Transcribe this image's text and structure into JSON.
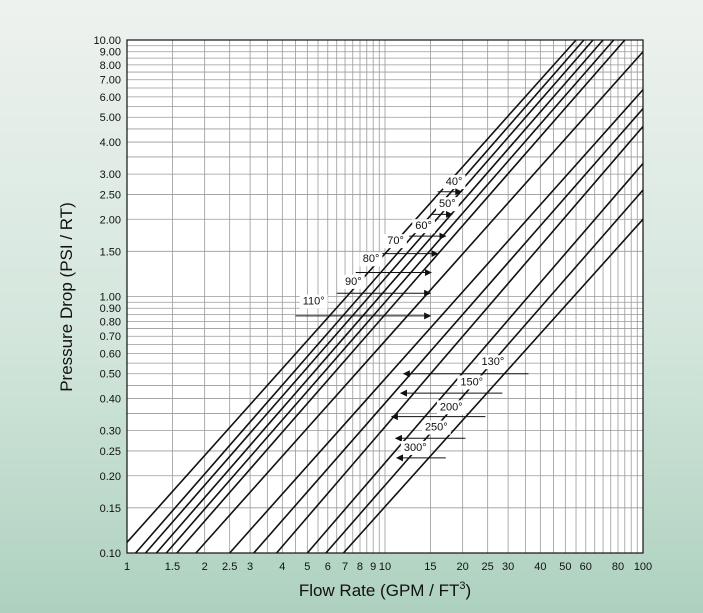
{
  "chart_data": {
    "type": "line",
    "title": "",
    "xlabel": "Flow Rate (GPM / FT",
    "xlabel_superscript": "3",
    "xlabel_suffix": ")",
    "ylabel": "Pressure Drop (PSI / RT)",
    "x_scale": "log",
    "y_scale": "log",
    "xlim": [
      1,
      100
    ],
    "ylim": [
      0.1,
      10
    ],
    "grid": true,
    "legend": "none",
    "line_color": "#111111",
    "x_ticks": [
      {
        "v": 1,
        "label": "1"
      },
      {
        "v": 1.5,
        "label": "1.5"
      },
      {
        "v": 2,
        "label": "2"
      },
      {
        "v": 2.5,
        "label": "2.5"
      },
      {
        "v": 3,
        "label": "3"
      },
      {
        "v": 4,
        "label": "4"
      },
      {
        "v": 5,
        "label": "5"
      },
      {
        "v": 6,
        "label": "6"
      },
      {
        "v": 7,
        "label": "7"
      },
      {
        "v": 8,
        "label": "8"
      },
      {
        "v": 9,
        "label": "9"
      },
      {
        "v": 10,
        "label": "10"
      },
      {
        "v": 15,
        "label": "15"
      },
      {
        "v": 20,
        "label": "20"
      },
      {
        "v": 25,
        "label": "25"
      },
      {
        "v": 30,
        "label": "30"
      },
      {
        "v": 40,
        "label": "40"
      },
      {
        "v": 50,
        "label": "50"
      },
      {
        "v": 60,
        "label": "60"
      },
      {
        "v": 80,
        "label": "80"
      },
      {
        "v": 100,
        "label": "100"
      }
    ],
    "y_ticks": [
      {
        "v": 0.1,
        "label": "0.10"
      },
      {
        "v": 0.15,
        "label": "0.15"
      },
      {
        "v": 0.2,
        "label": "0.20"
      },
      {
        "v": 0.25,
        "label": "0.25"
      },
      {
        "v": 0.3,
        "label": "0.30"
      },
      {
        "v": 0.4,
        "label": "0.40"
      },
      {
        "v": 0.5,
        "label": "0.50"
      },
      {
        "v": 0.6,
        "label": "0.60"
      },
      {
        "v": 0.7,
        "label": "0.70"
      },
      {
        "v": 0.8,
        "label": "0.80"
      },
      {
        "v": 0.9,
        "label": "0.90"
      },
      {
        "v": 1,
        "label": "1.00"
      },
      {
        "v": 1.5,
        "label": "1.50"
      },
      {
        "v": 2,
        "label": "2.00"
      },
      {
        "v": 2.5,
        "label": "2.50"
      },
      {
        "v": 3,
        "label": "3.00"
      },
      {
        "v": 4,
        "label": "4.00"
      },
      {
        "v": 5,
        "label": "5.00"
      },
      {
        "v": 6,
        "label": "6.00"
      },
      {
        "v": 7,
        "label": "7.00"
      },
      {
        "v": 8,
        "label": "8.00"
      },
      {
        "v": 9,
        "label": "9.00"
      },
      {
        "v": 10,
        "label": "10.00"
      }
    ],
    "x_grid": [
      1,
      1.5,
      2,
      2.5,
      3,
      3.5,
      4,
      4.5,
      5,
      5.5,
      6,
      6.5,
      7,
      7.5,
      8,
      8.5,
      9,
      9.5,
      10,
      15,
      20,
      25,
      30,
      35,
      40,
      45,
      50,
      55,
      60,
      65,
      70,
      75,
      80,
      85,
      90,
      95,
      100
    ],
    "y_grid": [
      0.1,
      0.15,
      0.2,
      0.25,
      0.3,
      0.35,
      0.4,
      0.45,
      0.5,
      0.55,
      0.6,
      0.65,
      0.7,
      0.75,
      0.8,
      0.85,
      0.9,
      0.95,
      1,
      1.5,
      2,
      2.5,
      3,
      3.5,
      4,
      4.5,
      5,
      5.5,
      6,
      6.5,
      7,
      7.5,
      8,
      8.5,
      9,
      9.5,
      10
    ],
    "series": [
      {
        "name": "40°",
        "x": [
          1.0,
          55.0
        ],
        "y": [
          0.11,
          10.0
        ]
      },
      {
        "name": "50°",
        "x": [
          1.08,
          59.0
        ],
        "y": [
          0.1,
          10.0
        ]
      },
      {
        "name": "60°",
        "x": [
          1.18,
          64.0
        ],
        "y": [
          0.1,
          10.0
        ]
      },
      {
        "name": "70°",
        "x": [
          1.3,
          70.0
        ],
        "y": [
          0.1,
          10.0
        ]
      },
      {
        "name": "80°",
        "x": [
          1.42,
          77.0
        ],
        "y": [
          0.1,
          10.0
        ]
      },
      {
        "name": "90°",
        "x": [
          1.56,
          85.0
        ],
        "y": [
          0.1,
          10.0
        ]
      },
      {
        "name": "110°",
        "x": [
          1.85,
          100.0
        ],
        "y": [
          0.1,
          9.0
        ]
      },
      {
        "name": "130°",
        "x": [
          2.5,
          100.0
        ],
        "y": [
          0.1,
          6.4
        ]
      },
      {
        "name": "150°",
        "x": [
          3.1,
          100.0
        ],
        "y": [
          0.1,
          5.4
        ]
      },
      {
        "name": "200°",
        "x": [
          3.8,
          100.0
        ],
        "y": [
          0.1,
          4.6
        ]
      },
      {
        "name": "250°",
        "x": [
          5.0,
          100.0
        ],
        "y": [
          0.1,
          3.3
        ]
      },
      {
        "name": "300°",
        "x": [
          5.9,
          100.0
        ],
        "y": [
          0.1,
          2.6
        ]
      }
    ],
    "extra_line": {
      "x": [
        6.9,
        100.0
      ],
      "y": [
        0.1,
        2.0
      ]
    },
    "annotations": [
      {
        "label": "40°",
        "label_x": 17.2,
        "label_y": 2.72,
        "arrow_from_x": 16.0,
        "arrow_to_x": 19.8,
        "arrow_y": 2.56,
        "side": "left"
      },
      {
        "label": "50°",
        "label_x": 16.2,
        "label_y": 2.23,
        "arrow_from_x": 15.2,
        "arrow_to_x": 18.2,
        "arrow_y": 2.09,
        "side": "left"
      },
      {
        "label": "60°",
        "label_x": 13.1,
        "label_y": 1.83,
        "arrow_from_x": 12.4,
        "arrow_to_x": 17.2,
        "arrow_y": 1.72,
        "side": "left"
      },
      {
        "label": "70°",
        "label_x": 10.2,
        "label_y": 1.6,
        "arrow_from_x": 9.6,
        "arrow_to_x": 16.0,
        "arrow_y": 1.47,
        "side": "left"
      },
      {
        "label": "80°",
        "label_x": 8.2,
        "label_y": 1.36,
        "arrow_from_x": 7.7,
        "arrow_to_x": 15.1,
        "arrow_y": 1.24,
        "side": "left"
      },
      {
        "label": "90°",
        "label_x": 7.0,
        "label_y": 1.11,
        "arrow_from_x": 6.5,
        "arrow_to_x": 15.0,
        "arrow_y": 1.03,
        "side": "left"
      },
      {
        "label": "110°",
        "label_x": 4.8,
        "label_y": 0.93,
        "arrow_from_x": 4.5,
        "arrow_to_x": 15.0,
        "arrow_y": 0.84,
        "side": "left"
      },
      {
        "label": "130°",
        "label_x": 29.0,
        "label_y": 0.54,
        "arrow_from_x": 36.0,
        "arrow_to_x": 11.8,
        "arrow_y": 0.5,
        "side": "right"
      },
      {
        "label": "150°",
        "label_x": 24.0,
        "label_y": 0.45,
        "arrow_from_x": 28.5,
        "arrow_to_x": 11.5,
        "arrow_y": 0.42,
        "side": "right"
      },
      {
        "label": "200°",
        "label_x": 20.0,
        "label_y": 0.36,
        "arrow_from_x": 24.5,
        "arrow_to_x": 10.6,
        "arrow_y": 0.34,
        "side": "right"
      },
      {
        "label": "250°",
        "label_x": 17.5,
        "label_y": 0.3,
        "arrow_from_x": 20.5,
        "arrow_to_x": 11.0,
        "arrow_y": 0.28,
        "side": "right"
      },
      {
        "label": "300°",
        "label_x": 14.5,
        "label_y": 0.25,
        "arrow_from_x": 17.2,
        "arrow_to_x": 11.1,
        "arrow_y": 0.235,
        "side": "right"
      }
    ]
  }
}
